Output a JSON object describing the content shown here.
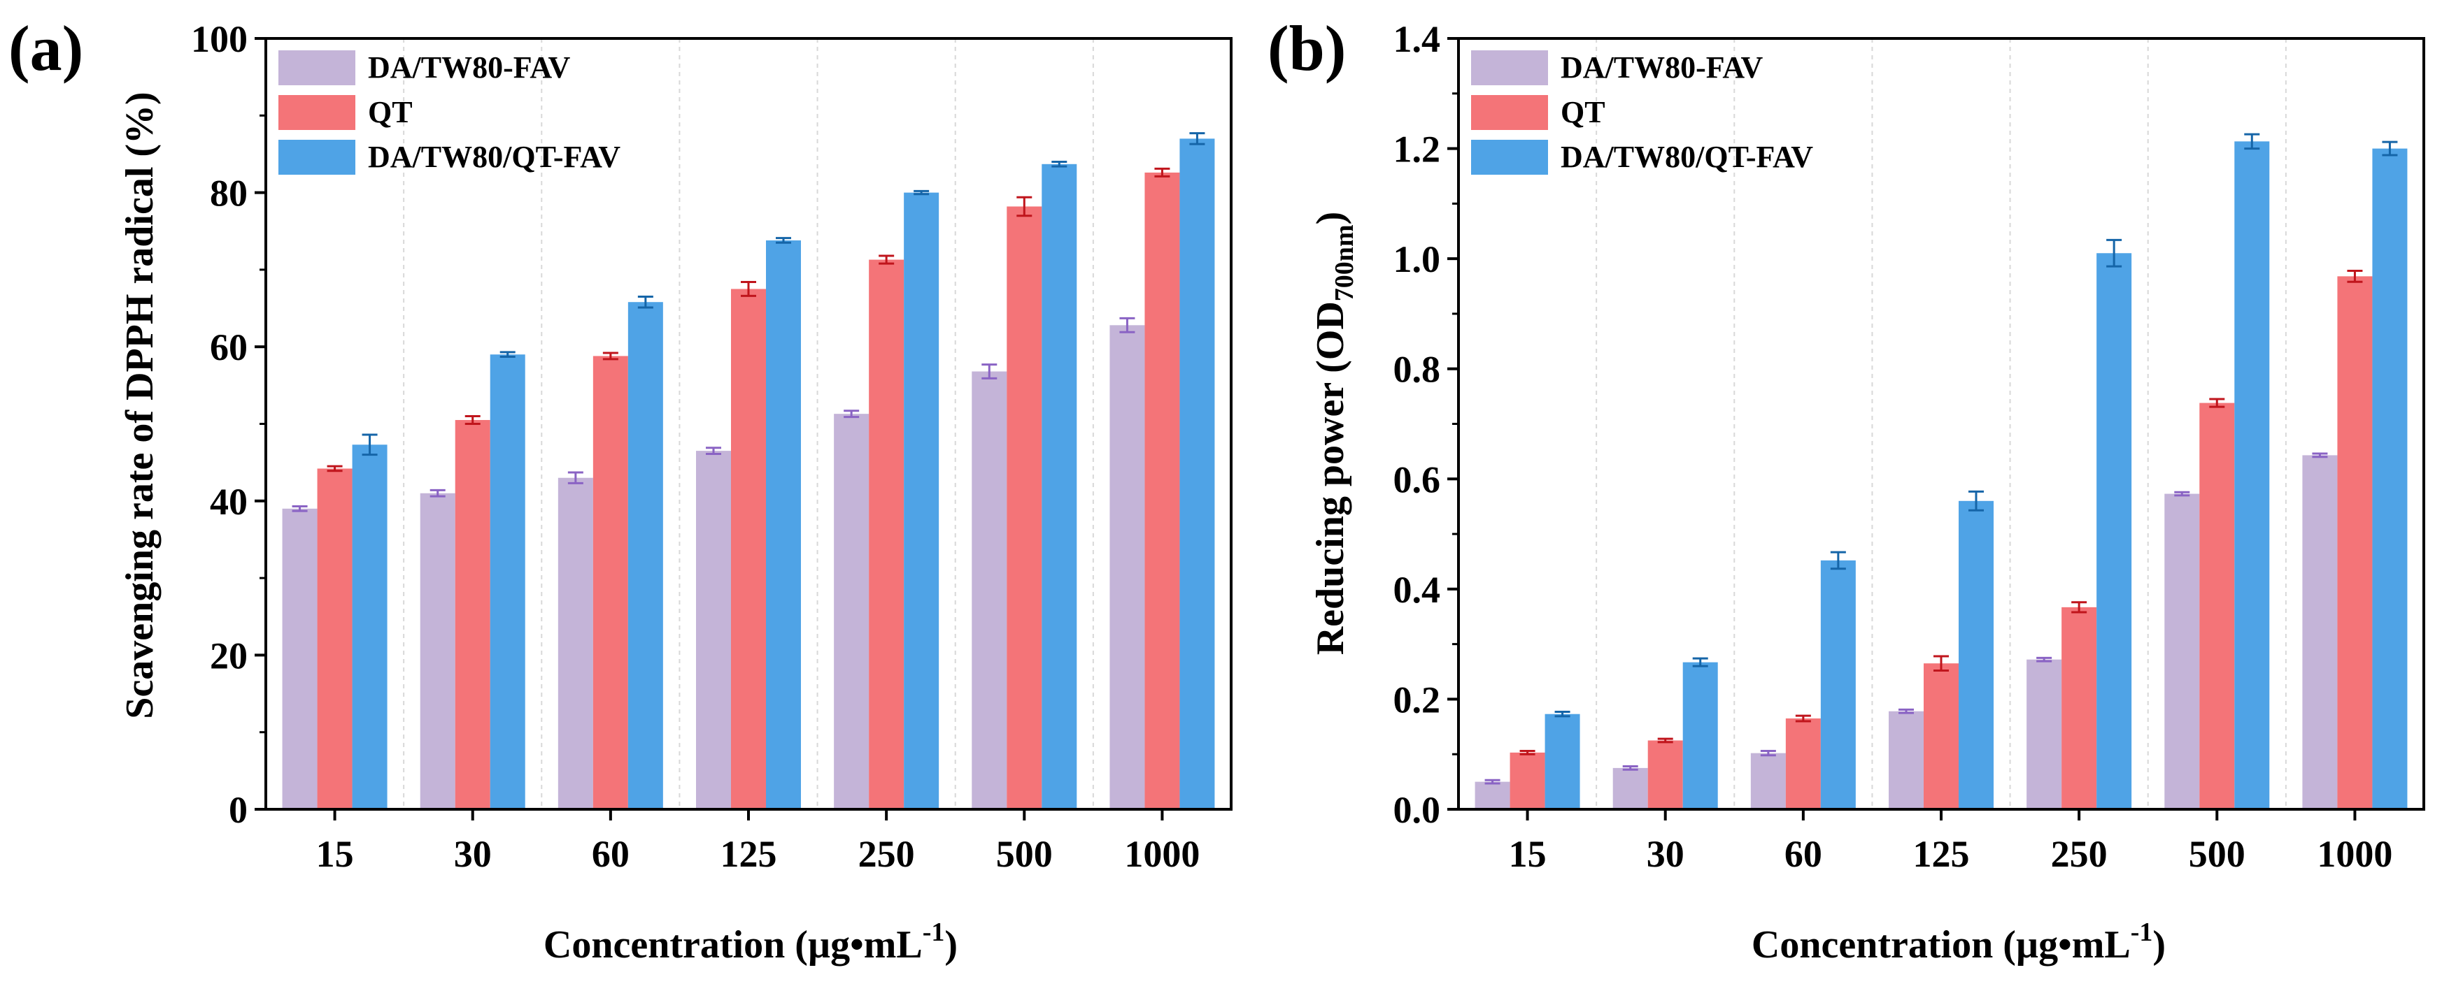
{
  "colors": {
    "series": [
      "#c4b4d8",
      "#f47478",
      "#4fa3e6"
    ],
    "errorbar": [
      "#8a63c4",
      "#c0151c",
      "#1565a8"
    ],
    "axis": "#000000",
    "grid": "#d8d8d8"
  },
  "chart_data": [
    {
      "type": "bar",
      "panel_label": "(a)",
      "categories": [
        "15",
        "30",
        "60",
        "125",
        "250",
        "500",
        "1000"
      ],
      "series": [
        {
          "name": "DA/TW80-FAV",
          "values": [
            39.0,
            41.0,
            43.0,
            46.5,
            51.3,
            56.8,
            62.8
          ],
          "errors": [
            0.3,
            0.4,
            0.7,
            0.4,
            0.4,
            0.9,
            0.9
          ]
        },
        {
          "name": "QT",
          "values": [
            44.2,
            50.5,
            58.8,
            67.5,
            71.3,
            78.2,
            82.6
          ],
          "errors": [
            0.3,
            0.5,
            0.4,
            0.9,
            0.5,
            1.2,
            0.5
          ]
        },
        {
          "name": "DA/TW80/QT-FAV",
          "values": [
            47.3,
            59.0,
            65.8,
            73.8,
            80.0,
            83.7,
            87.0
          ],
          "errors": [
            1.3,
            0.3,
            0.7,
            0.3,
            0.2,
            0.3,
            0.7
          ]
        }
      ],
      "title": "",
      "xlabel": "Concentration (µg•mL",
      "xlabel_sup": "-1",
      "xlabel_end": ")",
      "ylabel": "Scavenging rate of DPPH radical (%)",
      "ylim": [
        0,
        100
      ],
      "yticks": [
        "0",
        "20",
        "40",
        "60",
        "80",
        "100"
      ],
      "legend_position": "top-left"
    },
    {
      "type": "bar",
      "panel_label": "(b)",
      "categories": [
        "15",
        "30",
        "60",
        "125",
        "250",
        "500",
        "1000"
      ],
      "series": [
        {
          "name": "DA/TW80-FAV",
          "values": [
            0.05,
            0.075,
            0.102,
            0.178,
            0.272,
            0.573,
            0.643
          ],
          "errors": [
            0.003,
            0.003,
            0.004,
            0.003,
            0.003,
            0.003,
            0.003
          ]
        },
        {
          "name": "QT",
          "values": [
            0.103,
            0.125,
            0.165,
            0.265,
            0.367,
            0.738,
            0.968
          ],
          "errors": [
            0.003,
            0.003,
            0.005,
            0.013,
            0.009,
            0.007,
            0.01
          ]
        },
        {
          "name": "DA/TW80/QT-FAV",
          "values": [
            0.173,
            0.267,
            0.452,
            0.56,
            1.01,
            1.213,
            1.2
          ],
          "errors": [
            0.004,
            0.007,
            0.015,
            0.017,
            0.024,
            0.013,
            0.012
          ]
        }
      ],
      "title": "",
      "xlabel": "Concentration (µg•mL",
      "xlabel_sup": "-1",
      "xlabel_end": ")",
      "ylabel": "Reducing power (OD",
      "ylabel_sub": "700nm",
      "ylabel_end": ")",
      "ylim": [
        0,
        1.4
      ],
      "yticks": [
        "0.0",
        "0.2",
        "0.4",
        "0.6",
        "0.8",
        "1.0",
        "1.2",
        "1.4"
      ],
      "legend_position": "top-left"
    }
  ]
}
